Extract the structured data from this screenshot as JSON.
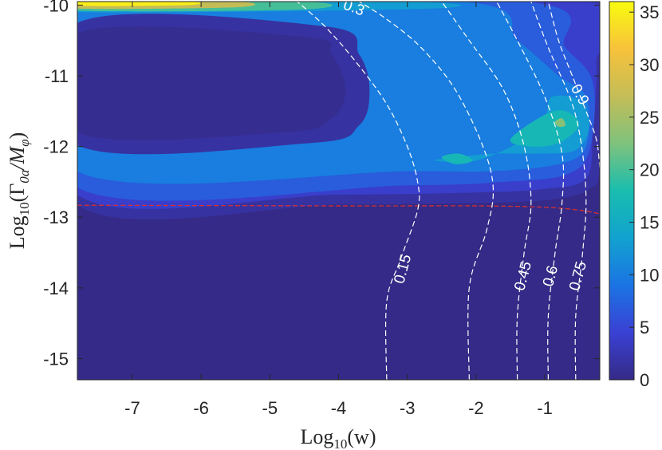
{
  "chart_data": {
    "type": "heatmap",
    "title": "",
    "xlabel": "Log",
    "xlabel_sub": "10",
    "xlabel_arg": "(w)",
    "ylabel": "Log",
    "ylabel_sub": "10",
    "ylabel_arg_prefix": "(Γ",
    "ylabel_arg_sub1": "0a",
    "ylabel_arg_mid": "/M",
    "ylabel_arg_sub2": "φ",
    "ylabel_arg_suffix": ")",
    "xlim": [
      -7.8,
      -0.2
    ],
    "ylim": [
      -15.3,
      -9.95
    ],
    "x_ticks": [
      -7,
      -6,
      -5,
      -4,
      -3,
      -2,
      -1
    ],
    "x_tick_labels": [
      "-7",
      "-6",
      "-5",
      "-4",
      "-3",
      "-2",
      "-1"
    ],
    "y_ticks": [
      -10,
      -11,
      -12,
      -13,
      -14,
      -15
    ],
    "y_tick_labels": [
      "-10",
      "-11",
      "-12",
      "-13",
      "-14",
      "-15"
    ],
    "colorbar": {
      "min": 0,
      "max": 36,
      "ticks": [
        0,
        5,
        10,
        15,
        20,
        25,
        30,
        35
      ],
      "tick_labels": [
        "0",
        "5",
        "10",
        "15",
        "20",
        "25",
        "30",
        "35"
      ],
      "colormap": "parula",
      "colors": [
        "#352a87",
        "#3a41d4",
        "#1b74e3",
        "#12a2d0",
        "#19bdae",
        "#7fc27c",
        "#c4bd57",
        "#f7c23b",
        "#f9fb0e"
      ]
    },
    "filled_regions": [
      {
        "level": 1.5,
        "points": [
          [
            -7.8,
            -9.95
          ],
          [
            -0.2,
            -9.95
          ],
          [
            -0.2,
            -12.2
          ],
          [
            -0.35,
            -12.6
          ],
          [
            -0.9,
            -12.75
          ],
          [
            -2,
            -12.8
          ],
          [
            -4,
            -12.82
          ],
          [
            -7.8,
            -12.82
          ]
        ]
      },
      {
        "level": 4,
        "points": [
          [
            -7.8,
            -9.95
          ],
          [
            -0.4,
            -9.95
          ],
          [
            -0.25,
            -10.8
          ],
          [
            -0.3,
            -11.8
          ],
          [
            -0.4,
            -12.45
          ],
          [
            -1,
            -12.6
          ],
          [
            -2,
            -12.65
          ],
          [
            -4,
            -12.68
          ],
          [
            -7.8,
            -12.68
          ]
        ]
      },
      {
        "level": 7,
        "points": [
          [
            -7.8,
            -9.95
          ],
          [
            -1.3,
            -9.95
          ],
          [
            -0.7,
            -10.6
          ],
          [
            -0.3,
            -11.1
          ],
          [
            -0.35,
            -12.05
          ],
          [
            -0.7,
            -12.4
          ],
          [
            -1.6,
            -12.5
          ],
          [
            -3,
            -12.55
          ],
          [
            -7.8,
            -12.58
          ]
        ]
      },
      {
        "level": 10,
        "points": [
          [
            -7.8,
            -9.95
          ],
          [
            -2.2,
            -9.95
          ],
          [
            -1.4,
            -10.5
          ],
          [
            -0.8,
            -11
          ],
          [
            -0.4,
            -11.3
          ],
          [
            -0.4,
            -12.0
          ],
          [
            -0.8,
            -12.25
          ],
          [
            -1.8,
            -12.35
          ],
          [
            -3,
            -12.35
          ],
          [
            -7.8,
            -12.35
          ]
        ]
      },
      {
        "level": 13,
        "points": [
          [
            -7.8,
            -9.95
          ],
          [
            -3,
            -9.95
          ],
          [
            -2.7,
            -10.05
          ],
          [
            -7.8,
            -10.1
          ]
        ]
      },
      {
        "level": 13,
        "points": [
          [
            -0.9,
            -11.3
          ],
          [
            -0.5,
            -11.35
          ],
          [
            -0.35,
            -11.7
          ],
          [
            -0.55,
            -12.05
          ],
          [
            -1.1,
            -12.1
          ],
          [
            -1.7,
            -12.1
          ],
          [
            -2.3,
            -12.15
          ],
          [
            -2.6,
            -12.2
          ],
          [
            -2.0,
            -12.2
          ],
          [
            -1.3,
            -11.9
          ],
          [
            -1.0,
            -11.6
          ]
        ]
      },
      {
        "level": 17,
        "points": [
          [
            -1.5,
            -11.9
          ],
          [
            -1.0,
            -11.55
          ],
          [
            -0.7,
            -11.5
          ],
          [
            -0.5,
            -11.7
          ],
          [
            -0.8,
            -11.95
          ],
          [
            -1.2,
            -12.0
          ]
        ]
      },
      {
        "level": 17,
        "points": [
          [
            -2.5,
            -12.15
          ],
          [
            -2.25,
            -12.1
          ],
          [
            -2.05,
            -12.2
          ],
          [
            -2.3,
            -12.25
          ]
        ]
      },
      {
        "level": 23,
        "points": [
          [
            -0.85,
            -11.65
          ],
          [
            -0.75,
            -11.6
          ],
          [
            -0.7,
            -11.7
          ],
          [
            -0.8,
            -11.72
          ]
        ]
      },
      {
        "level": 20,
        "points": [
          [
            -7.8,
            -9.95
          ],
          [
            -4.5,
            -9.95
          ],
          [
            -4.5,
            -10.06
          ],
          [
            -7.8,
            -10.08
          ]
        ]
      },
      {
        "level": 27,
        "points": [
          [
            -7.8,
            -9.95
          ],
          [
            -5.5,
            -9.95
          ],
          [
            -5.5,
            -10.03
          ],
          [
            -7.8,
            -10.05
          ]
        ]
      },
      {
        "level": 35,
        "points": [
          [
            -7.8,
            -9.95
          ],
          [
            -6.2,
            -9.95
          ],
          [
            -6.2,
            -10.0
          ],
          [
            -7.8,
            -10.01
          ]
        ]
      }
    ],
    "inner_hole": {
      "level": 0.5,
      "points": [
        [
          -7.8,
          -10.4
        ],
        [
          -4.5,
          -10.45
        ],
        [
          -4.1,
          -10.7
        ],
        [
          -3.9,
          -11.2
        ],
        [
          -4.1,
          -11.6
        ],
        [
          -4.8,
          -11.8
        ],
        [
          -7.8,
          -11.8
        ]
      ]
    },
    "inner_ring": {
      "level": 1.5,
      "points": [
        [
          -7.8,
          -10.25
        ],
        [
          -4.2,
          -10.3
        ],
        [
          -3.7,
          -10.7
        ],
        [
          -3.55,
          -11.2
        ],
        [
          -3.7,
          -11.7
        ],
        [
          -4.4,
          -11.95
        ],
        [
          -7.8,
          -11.98
        ]
      ]
    },
    "contour_lines": [
      {
        "label": "0.15",
        "label_at": [
          -3.0,
          -13.75
        ],
        "points": [
          [
            -3.3,
            -15.3
          ],
          [
            -3.3,
            -14.2
          ],
          [
            -3.1,
            -13.6
          ],
          [
            -2.85,
            -12.9
          ],
          [
            -2.85,
            -12.5
          ],
          [
            -3.0,
            -12.0
          ],
          [
            -3.3,
            -11.4
          ],
          [
            -3.75,
            -10.8
          ],
          [
            -4.2,
            -10.3
          ],
          [
            -4.6,
            -9.95
          ]
        ]
      },
      {
        "label": "0.3",
        "label_at": [
          -3.8,
          -10.1
        ],
        "points": [
          [
            -2.1,
            -15.3
          ],
          [
            -2.1,
            -14.0
          ],
          [
            -1.85,
            -13.2
          ],
          [
            -1.75,
            -12.6
          ],
          [
            -1.9,
            -12.0
          ],
          [
            -2.3,
            -11.2
          ],
          [
            -2.8,
            -10.6
          ],
          [
            -3.3,
            -10.2
          ],
          [
            -3.7,
            -9.95
          ]
        ]
      },
      {
        "label": "0.45",
        "label_at": [
          -1.25,
          -13.85
        ],
        "points": [
          [
            -1.4,
            -15.3
          ],
          [
            -1.4,
            -14.4
          ],
          [
            -1.3,
            -13.5
          ],
          [
            -1.2,
            -12.8
          ],
          [
            -1.3,
            -12.0
          ],
          [
            -1.6,
            -11.2
          ],
          [
            -2.1,
            -10.5
          ],
          [
            -2.5,
            -9.95
          ]
        ]
      },
      {
        "label": "0.6",
        "label_at": [
          -0.85,
          -13.85
        ],
        "points": [
          [
            -0.95,
            -15.3
          ],
          [
            -0.95,
            -14.4
          ],
          [
            -0.85,
            -13.5
          ],
          [
            -0.75,
            -12.8
          ],
          [
            -0.75,
            -12.1
          ],
          [
            -1.0,
            -11.3
          ],
          [
            -1.4,
            -10.5
          ],
          [
            -1.7,
            -9.95
          ]
        ]
      },
      {
        "label": "0.75",
        "label_at": [
          -0.45,
          -13.85
        ],
        "points": [
          [
            -0.55,
            -15.3
          ],
          [
            -0.55,
            -14.4
          ],
          [
            -0.45,
            -13.5
          ],
          [
            -0.4,
            -12.8
          ],
          [
            -0.45,
            -12.1
          ],
          [
            -0.6,
            -11.4
          ],
          [
            -0.95,
            -10.6
          ],
          [
            -1.2,
            -9.95
          ]
        ]
      },
      {
        "label": "0.9",
        "label_at": [
          -0.55,
          -11.3
        ],
        "points": [
          [
            -0.2,
            -12.3
          ],
          [
            -0.25,
            -11.9
          ],
          [
            -0.4,
            -11.5
          ],
          [
            -0.6,
            -11.0
          ],
          [
            -0.8,
            -10.5
          ],
          [
            -0.95,
            -9.95
          ]
        ]
      }
    ],
    "threshold_line": {
      "color": "#e0312b",
      "points": [
        [
          -7.8,
          -12.83
        ],
        [
          -4,
          -12.84
        ],
        [
          -2,
          -12.84
        ],
        [
          -1,
          -12.86
        ],
        [
          -0.5,
          -12.9
        ],
        [
          -0.2,
          -12.95
        ]
      ]
    }
  }
}
